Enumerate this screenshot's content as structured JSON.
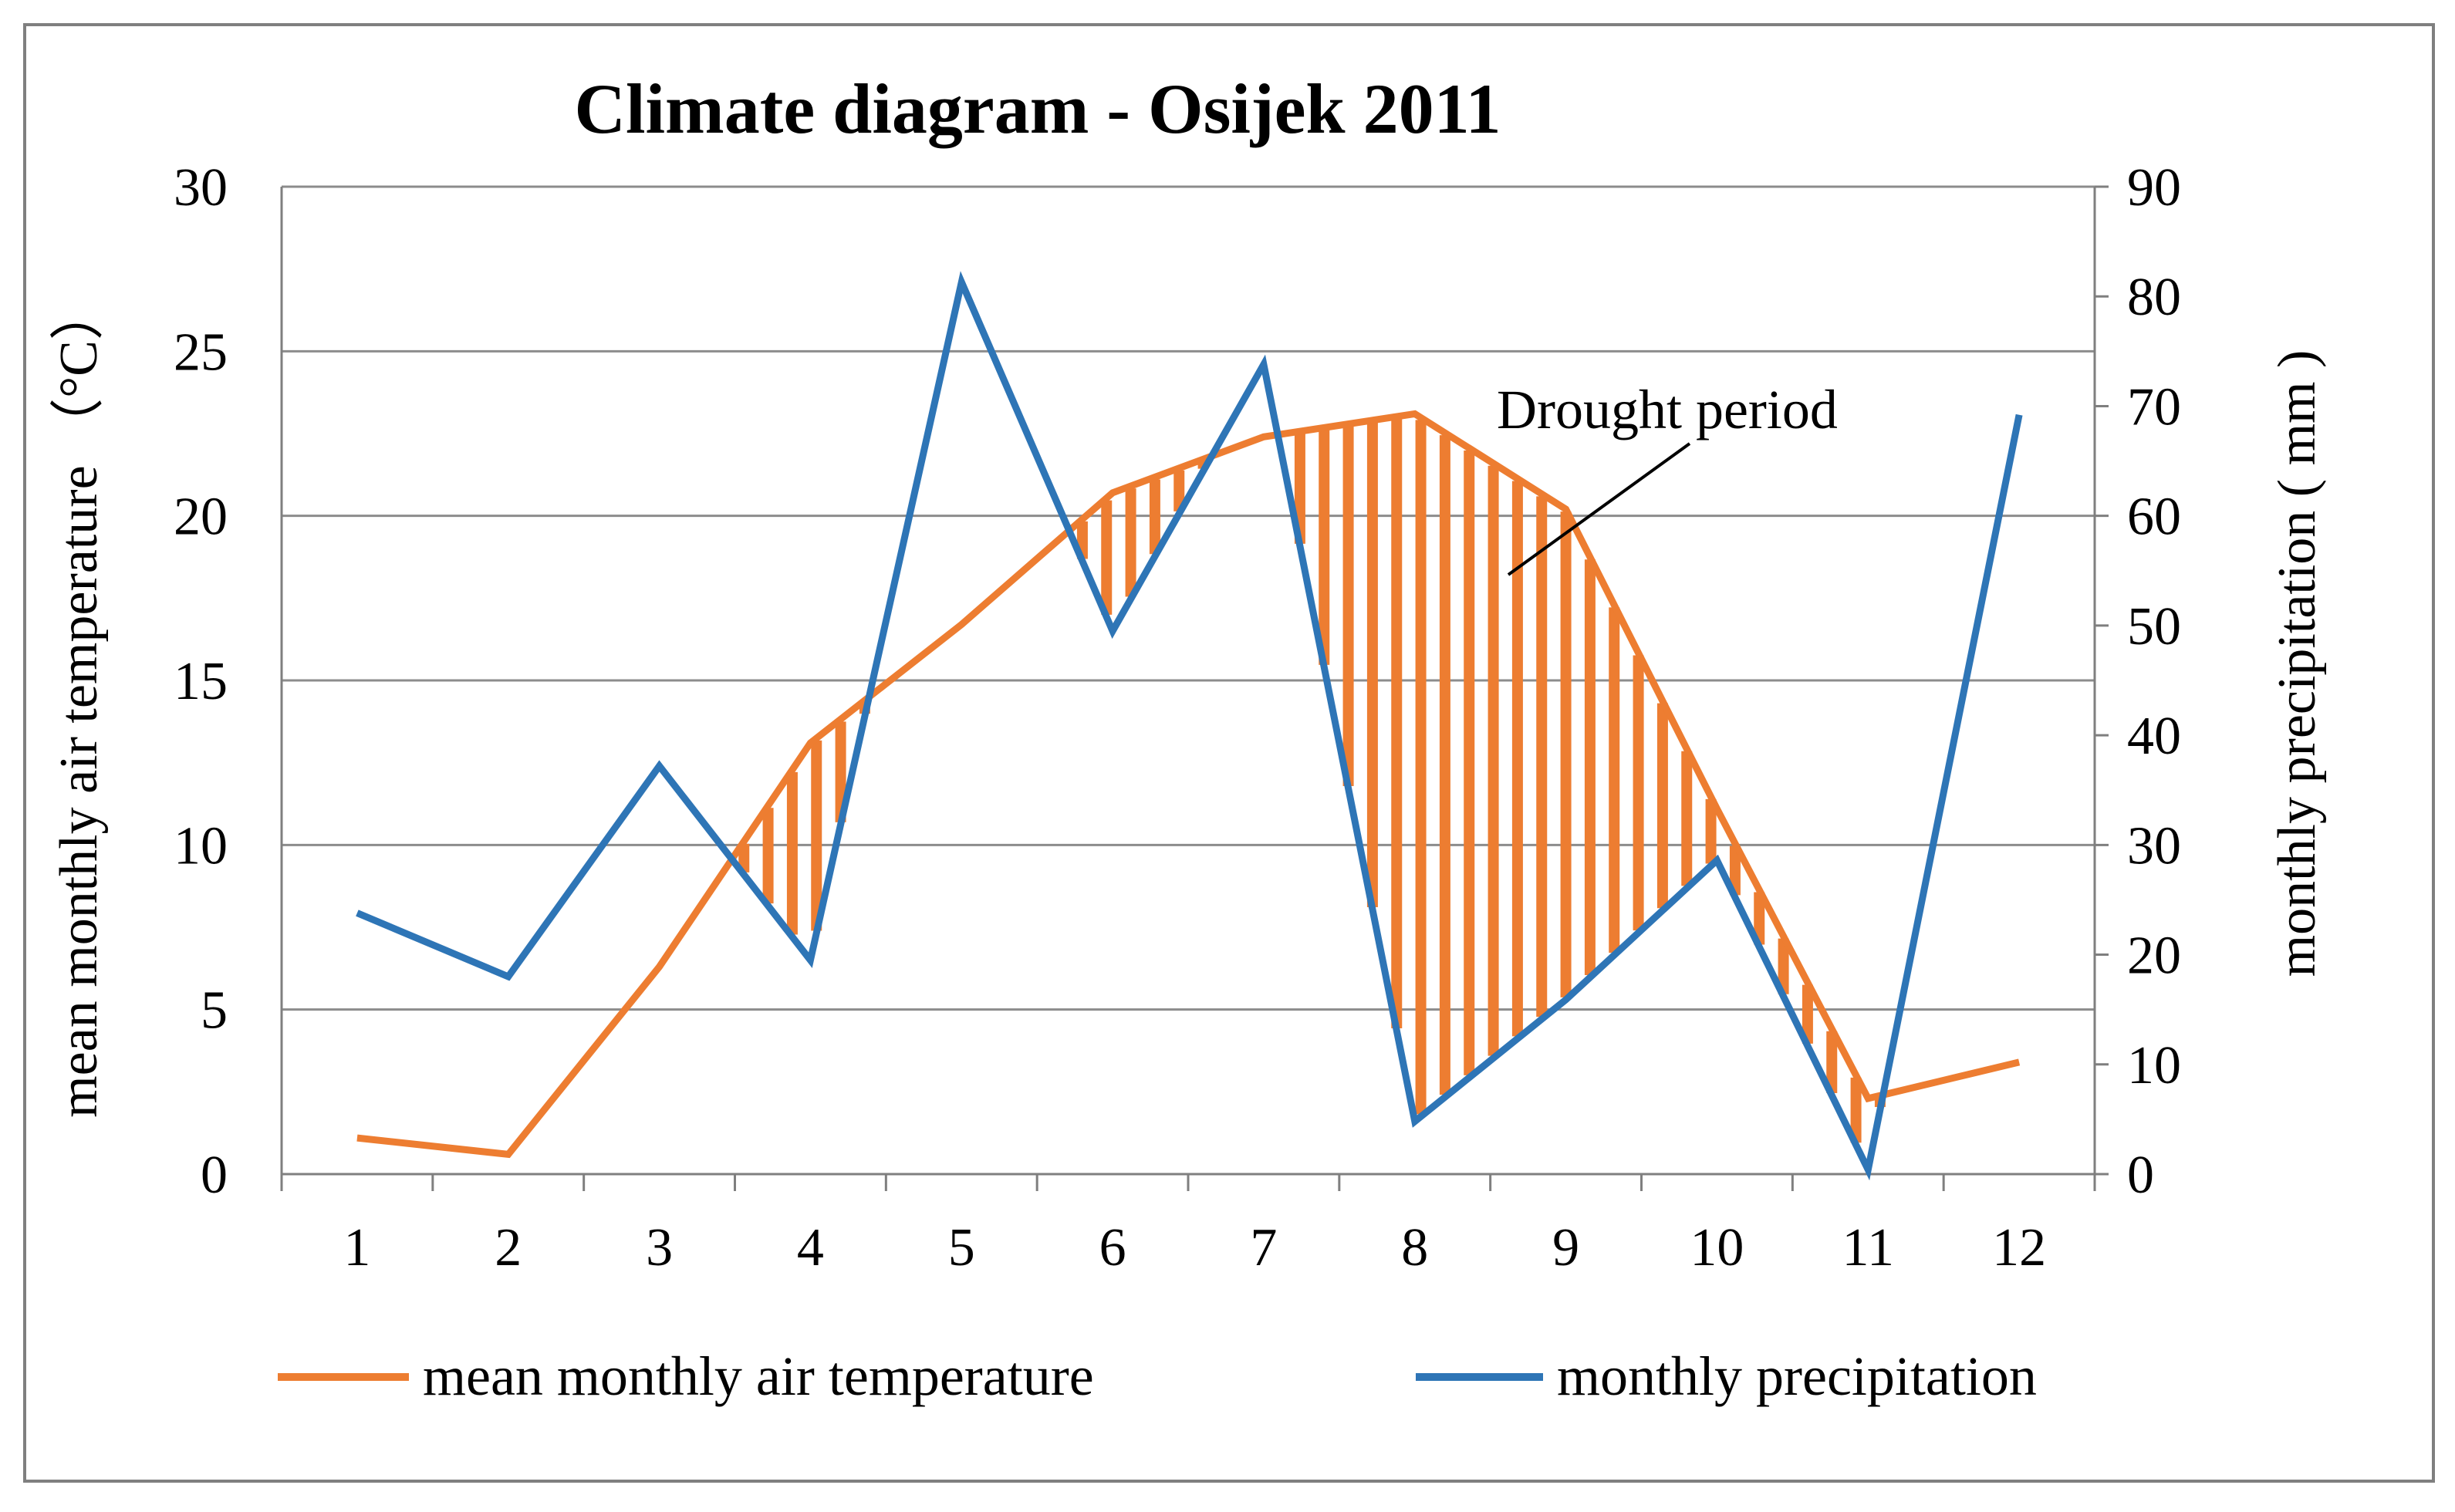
{
  "chart_data": {
    "type": "line",
    "title": "Climate diagram - Osijek 2011",
    "categories": [
      "1",
      "2",
      "3",
      "4",
      "5",
      "6",
      "7",
      "8",
      "9",
      "10",
      "11",
      "12"
    ],
    "series": [
      {
        "name": "mean monthly air temperature",
        "axis": "left",
        "color": "#ED7D31",
        "values": [
          1.1,
          0.6,
          6.3,
          13.1,
          16.7,
          20.7,
          22.4,
          23.1,
          20.2,
          11.1,
          2.3,
          3.4
        ]
      },
      {
        "name": "monthly precipitation",
        "axis": "right",
        "color": "#2E75B6",
        "values": [
          23.8,
          18.0,
          37.2,
          19.5,
          81.3,
          49.5,
          73.8,
          4.8,
          15.9,
          28.6,
          0.4,
          69.2
        ]
      }
    ],
    "ylabel": "mean monthly air temperature （°C）",
    "ylabel_right": "monthly precipitation ( mm )",
    "ylim": [
      0,
      30
    ],
    "yticks": [
      0,
      5,
      10,
      15,
      20,
      25,
      30
    ],
    "ylim_right": [
      0,
      90
    ],
    "yticks_right": [
      0,
      10,
      20,
      30,
      40,
      50,
      60,
      70,
      80,
      90
    ],
    "grid": true,
    "legend_position": "bottom",
    "annotation": "Drought period",
    "hatch_color": "#ED7D31"
  }
}
